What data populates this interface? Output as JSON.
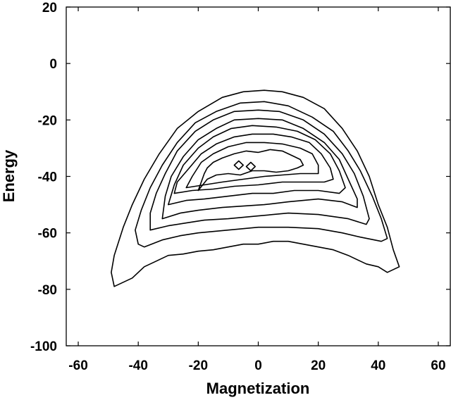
{
  "chart_data": {
    "type": "contour",
    "title": "",
    "xlabel": "Magnetization",
    "ylabel": "Energy",
    "xlim": [
      -64,
      64
    ],
    "ylim": [
      -100,
      20
    ],
    "xticks": [
      -60,
      -40,
      -20,
      0,
      20,
      40,
      60
    ],
    "yticks": [
      20,
      0,
      -20,
      -40,
      -60,
      -80,
      -100
    ],
    "grid": false,
    "line_color": "#000000",
    "contours": [
      {
        "points": [
          [
            -48,
            -79
          ],
          [
            -45,
            -77.5
          ],
          [
            -42,
            -76
          ],
          [
            -38,
            -72
          ],
          [
            -34,
            -70
          ],
          [
            -30,
            -68
          ],
          [
            -25,
            -67.5
          ],
          [
            -20,
            -66.5
          ],
          [
            -15,
            -66
          ],
          [
            -10,
            -65
          ],
          [
            -5,
            -64
          ],
          [
            0,
            -64
          ],
          [
            5,
            -63
          ],
          [
            10,
            -63
          ],
          [
            15,
            -64
          ],
          [
            20,
            -65
          ],
          [
            25,
            -66
          ],
          [
            30,
            -68
          ],
          [
            34,
            -70
          ],
          [
            36,
            -71
          ],
          [
            40,
            -72
          ],
          [
            43,
            -74
          ],
          [
            45,
            -73
          ],
          [
            47,
            -72
          ],
          [
            45,
            -66
          ],
          [
            43,
            -58
          ],
          [
            40,
            -50
          ],
          [
            37,
            -40
          ],
          [
            33,
            -31
          ],
          [
            28,
            -23
          ],
          [
            22,
            -16
          ],
          [
            15,
            -12
          ],
          [
            8,
            -10
          ],
          [
            2,
            -9.5
          ],
          [
            -5,
            -10
          ],
          [
            -12,
            -12
          ],
          [
            -20,
            -17
          ],
          [
            -27,
            -23
          ],
          [
            -33,
            -32
          ],
          [
            -38,
            -41
          ],
          [
            -42,
            -50
          ],
          [
            -45,
            -58
          ],
          [
            -48,
            -68
          ],
          [
            -49,
            -74
          ],
          [
            -48,
            -79
          ]
        ]
      },
      {
        "points": [
          [
            -38,
            -65
          ],
          [
            -32,
            -62.5
          ],
          [
            -26,
            -61
          ],
          [
            -20,
            -60
          ],
          [
            -10,
            -59
          ],
          [
            0,
            -58
          ],
          [
            10,
            -58
          ],
          [
            20,
            -58.5
          ],
          [
            28,
            -60
          ],
          [
            34,
            -61.5
          ],
          [
            41,
            -63
          ],
          [
            43,
            -62
          ],
          [
            41,
            -55
          ],
          [
            38,
            -47
          ],
          [
            34,
            -38
          ],
          [
            30,
            -31
          ],
          [
            25,
            -24
          ],
          [
            18,
            -19
          ],
          [
            10,
            -15
          ],
          [
            2,
            -13.5
          ],
          [
            -6,
            -14
          ],
          [
            -14,
            -17
          ],
          [
            -21,
            -21
          ],
          [
            -27,
            -28
          ],
          [
            -32,
            -36
          ],
          [
            -36,
            -44
          ],
          [
            -39,
            -52
          ],
          [
            -41,
            -59
          ],
          [
            -40,
            -64
          ],
          [
            -38,
            -65
          ]
        ]
      },
      {
        "points": [
          [
            -36,
            -59
          ],
          [
            -30,
            -57.5
          ],
          [
            -24,
            -56.5
          ],
          [
            -18,
            -55.5
          ],
          [
            -10,
            -55
          ],
          [
            0,
            -54
          ],
          [
            10,
            -53
          ],
          [
            20,
            -53.5
          ],
          [
            30,
            -55
          ],
          [
            36,
            -57
          ],
          [
            37,
            -55
          ],
          [
            35,
            -47
          ],
          [
            32,
            -39
          ],
          [
            28,
            -32
          ],
          [
            22,
            -25
          ],
          [
            15,
            -20
          ],
          [
            7,
            -17
          ],
          [
            0,
            -16.5
          ],
          [
            -8,
            -17
          ],
          [
            -15,
            -20
          ],
          [
            -21,
            -24
          ],
          [
            -27,
            -31
          ],
          [
            -31,
            -39
          ],
          [
            -34,
            -46
          ],
          [
            -36,
            -53
          ],
          [
            -36,
            -59
          ]
        ]
      },
      {
        "points": [
          [
            -32,
            -55
          ],
          [
            -26,
            -53
          ],
          [
            -20,
            -52
          ],
          [
            -12,
            -51
          ],
          [
            -5,
            -50.5
          ],
          [
            2,
            -50
          ],
          [
            10,
            -49
          ],
          [
            20,
            -48
          ],
          [
            28,
            -49
          ],
          [
            33,
            -51
          ],
          [
            33,
            -48
          ],
          [
            30,
            -41
          ],
          [
            27,
            -34
          ],
          [
            22,
            -28
          ],
          [
            15,
            -23
          ],
          [
            8,
            -20
          ],
          [
            0,
            -19.5
          ],
          [
            -8,
            -20
          ],
          [
            -14,
            -23
          ],
          [
            -20,
            -27
          ],
          [
            -25,
            -33
          ],
          [
            -29,
            -40
          ],
          [
            -31,
            -47
          ],
          [
            -32,
            -55
          ]
        ]
      },
      {
        "points": [
          [
            -30,
            -50
          ],
          [
            -24,
            -48.5
          ],
          [
            -18,
            -48
          ],
          [
            -10,
            -47
          ],
          [
            -2,
            -46
          ],
          [
            5,
            -46
          ],
          [
            12,
            -45
          ],
          [
            20,
            -45
          ],
          [
            27,
            -46
          ],
          [
            29,
            -44
          ],
          [
            27,
            -38
          ],
          [
            24,
            -32
          ],
          [
            19,
            -27
          ],
          [
            13,
            -24
          ],
          [
            6,
            -22.5
          ],
          [
            -2,
            -22
          ],
          [
            -9,
            -23
          ],
          [
            -15,
            -26
          ],
          [
            -20,
            -30
          ],
          [
            -25,
            -36
          ],
          [
            -28,
            -43
          ],
          [
            -30,
            -50
          ]
        ]
      },
      {
        "points": [
          [
            -28,
            -46
          ],
          [
            -22,
            -45
          ],
          [
            -15,
            -44.5
          ],
          [
            -8,
            -43.5
          ],
          [
            0,
            -43
          ],
          [
            8,
            -42
          ],
          [
            15,
            -42
          ],
          [
            22,
            -42
          ],
          [
            25,
            -41
          ],
          [
            24,
            -37
          ],
          [
            21,
            -32
          ],
          [
            17,
            -28
          ],
          [
            11,
            -26
          ],
          [
            5,
            -25
          ],
          [
            -2,
            -25
          ],
          [
            -8,
            -26
          ],
          [
            -14,
            -28.5
          ],
          [
            -19,
            -32
          ],
          [
            -23,
            -37
          ],
          [
            -27,
            -42
          ],
          [
            -28,
            -46
          ]
        ]
      },
      {
        "points": [
          [
            -24,
            -44
          ],
          [
            -18,
            -43
          ],
          [
            -12,
            -42
          ],
          [
            -5,
            -41
          ],
          [
            2,
            -40
          ],
          [
            8,
            -39.5
          ],
          [
            14,
            -39
          ],
          [
            20,
            -39
          ],
          [
            20,
            -36
          ],
          [
            18,
            -32
          ],
          [
            14,
            -30
          ],
          [
            8,
            -28.5
          ],
          [
            2,
            -28
          ],
          [
            -4,
            -28
          ],
          [
            -10,
            -29.5
          ],
          [
            -15,
            -32
          ],
          [
            -19,
            -35
          ],
          [
            -22,
            -40
          ],
          [
            -24,
            -44
          ]
        ]
      },
      {
        "points": [
          [
            -20,
            -45
          ],
          [
            -17,
            -41
          ],
          [
            -14,
            -39.5
          ],
          [
            -10,
            -39
          ],
          [
            -6,
            -39.5
          ],
          [
            -2,
            -38
          ],
          [
            2,
            -38
          ],
          [
            6,
            -38.5
          ],
          [
            10,
            -38
          ],
          [
            13,
            -37
          ],
          [
            15,
            -36
          ],
          [
            14,
            -34
          ],
          [
            12,
            -33
          ],
          [
            8,
            -31
          ],
          [
            4,
            -30.5
          ],
          [
            0,
            -31.5
          ],
          [
            -4,
            -31
          ],
          [
            -8,
            -32
          ],
          [
            -12,
            -33.5
          ],
          [
            -15,
            -35
          ],
          [
            -17,
            -37
          ],
          [
            -18,
            -39
          ],
          [
            -20,
            -45
          ]
        ]
      },
      {
        "points": [
          [
            -6.5,
            -34.5
          ],
          [
            -5,
            -36
          ],
          [
            -6.5,
            -37.5
          ],
          [
            -8,
            -36
          ],
          [
            -6.5,
            -34.5
          ]
        ]
      },
      {
        "points": [
          [
            -2.5,
            -35
          ],
          [
            -1,
            -36.5
          ],
          [
            -2.5,
            -38
          ],
          [
            -4,
            -36.5
          ],
          [
            -2.5,
            -35
          ]
        ]
      }
    ]
  }
}
